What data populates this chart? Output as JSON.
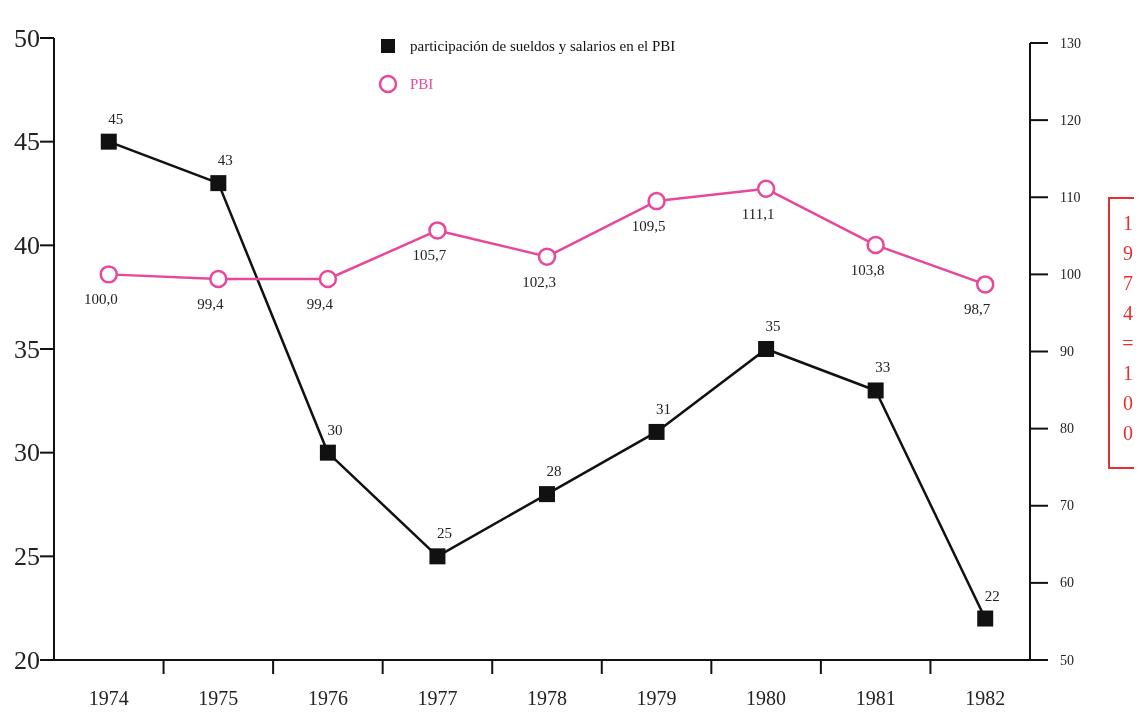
{
  "chart_data": {
    "type": "line",
    "categories": [
      "1974",
      "1975",
      "1976",
      "1977",
      "1978",
      "1979",
      "1980",
      "1981",
      "1982"
    ],
    "ylim": [
      20,
      50
    ],
    "yticks": [
      20,
      25,
      30,
      35,
      40,
      45,
      50
    ],
    "y2lim": [
      50,
      130
    ],
    "y2ticks": [
      50,
      60,
      70,
      80,
      90,
      100,
      110,
      120,
      130
    ],
    "y2label": "1974=100",
    "legend": "top",
    "grid": false,
    "line_style": "solid",
    "series": [
      {
        "name": "participación de sueldos y salarios en el PBI",
        "color": "#111111",
        "marker": "square",
        "values": [
          45,
          43,
          30,
          25,
          28,
          31,
          35,
          33,
          22
        ],
        "value_labels": [
          "45",
          "43",
          "30",
          "25",
          "28",
          "31",
          "35",
          "33",
          "22"
        ]
      },
      {
        "name": "PBI",
        "color": "#e8489a",
        "marker": "circle",
        "axis": "y2",
        "values": [
          100.0,
          99.4,
          99.4,
          105.7,
          102.3,
          109.5,
          111.1,
          103.8,
          98.7
        ],
        "value_labels": [
          "100,0",
          "99,4",
          "99,4",
          "105,7",
          "102,3",
          "109,5",
          "111,1",
          "103,8",
          "98,7"
        ]
      }
    ]
  }
}
